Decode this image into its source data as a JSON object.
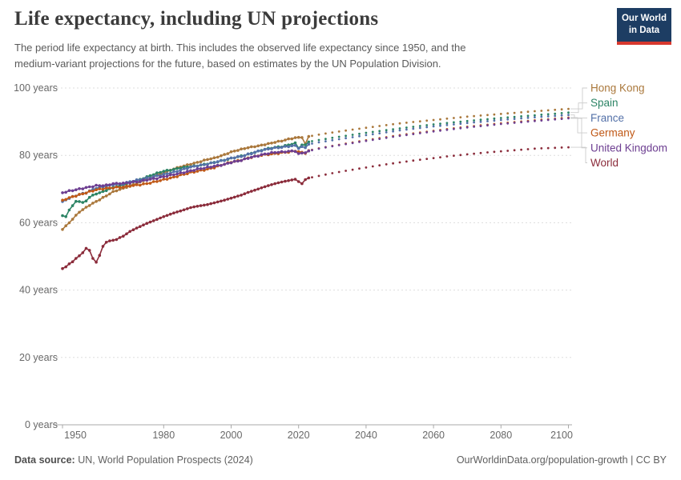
{
  "header": {
    "title": "Life expectancy, including UN projections",
    "subtitle": "The period life expectancy at birth. This includes the observed life expectancy since 1950, and the\nmedium-variant projections for the future, based on estimates by the UN Population Division.",
    "logo_line1": "Our World",
    "logo_line2": "in Data",
    "logo_bg": "#1d3d63",
    "logo_accent": "#d7382e"
  },
  "footer": {
    "source_label": "Data source:",
    "source_value": " UN, World Population Prospects (2024)",
    "credit": "OurWorldinData.org/population-growth | CC BY"
  },
  "chart_data": {
    "type": "line",
    "title": "Life expectancy, including UN projections",
    "xlabel": "",
    "ylabel": "years",
    "y_suffix": " years",
    "x_range": [
      1950,
      2100
    ],
    "y_range": [
      0,
      100
    ],
    "x_ticks": [
      1950,
      1980,
      2000,
      2020,
      2040,
      2060,
      2080,
      2100
    ],
    "y_ticks": [
      0,
      20,
      40,
      60,
      80,
      100
    ],
    "grid": "horizontal-dashed",
    "legend_position": "right",
    "observed_until": 2023,
    "projection_start": 2024,
    "colors": {
      "grid": "#dddddd",
      "axis": "#a9a9a9",
      "tick_text": "#686868",
      "leader": "#cccccc"
    },
    "series": [
      {
        "name": "Hong Kong",
        "color": "#AA783C",
        "wiggle": 0.1,
        "anchors": [
          [
            1950,
            58.0
          ],
          [
            1952,
            60.0
          ],
          [
            1955,
            63.2
          ],
          [
            1958,
            65.2
          ],
          [
            1960,
            66.3
          ],
          [
            1963,
            68.0
          ],
          [
            1965,
            69.2
          ],
          [
            1968,
            70.2
          ],
          [
            1970,
            71.0
          ],
          [
            1973,
            72.0
          ],
          [
            1975,
            73.0
          ],
          [
            1978,
            74.2
          ],
          [
            1980,
            74.8
          ],
          [
            1983,
            76.0
          ],
          [
            1985,
            76.6
          ],
          [
            1988,
            77.4
          ],
          [
            1990,
            77.9
          ],
          [
            1993,
            78.8
          ],
          [
            1995,
            79.2
          ],
          [
            1998,
            80.2
          ],
          [
            2000,
            81.0
          ],
          [
            2003,
            81.8
          ],
          [
            2005,
            82.3
          ],
          [
            2008,
            82.8
          ],
          [
            2010,
            83.2
          ],
          [
            2013,
            83.9
          ],
          [
            2015,
            84.3
          ],
          [
            2017,
            84.8
          ],
          [
            2019,
            85.2
          ],
          [
            2020,
            85.3
          ],
          [
            2021,
            85.4
          ],
          [
            2022,
            83.3
          ],
          [
            2023,
            85.6
          ],
          [
            2025,
            86.0
          ],
          [
            2030,
            86.8
          ],
          [
            2040,
            88.2
          ],
          [
            2050,
            89.5
          ],
          [
            2060,
            90.5
          ],
          [
            2070,
            91.5
          ],
          [
            2080,
            92.3
          ],
          [
            2090,
            93.1
          ],
          [
            2100,
            93.8
          ]
        ]
      },
      {
        "name": "Spain",
        "color": "#2C8465",
        "wiggle": 0.12,
        "anchors": [
          [
            1950,
            62.1
          ],
          [
            1951,
            61.7
          ],
          [
            1952,
            63.9
          ],
          [
            1953,
            65.0
          ],
          [
            1954,
            66.3
          ],
          [
            1955,
            66.4
          ],
          [
            1956,
            65.9
          ],
          [
            1957,
            66.5
          ],
          [
            1958,
            67.6
          ],
          [
            1960,
            68.6
          ],
          [
            1962,
            69.2
          ],
          [
            1965,
            70.5
          ],
          [
            1968,
            71.2
          ],
          [
            1970,
            72.0
          ],
          [
            1973,
            72.8
          ],
          [
            1975,
            73.6
          ],
          [
            1978,
            74.7
          ],
          [
            1980,
            75.3
          ],
          [
            1983,
            75.8
          ],
          [
            1985,
            76.3
          ],
          [
            1988,
            76.7
          ],
          [
            1990,
            76.9
          ],
          [
            1993,
            77.5
          ],
          [
            1995,
            77.9
          ],
          [
            1998,
            78.6
          ],
          [
            2000,
            79.1
          ],
          [
            2003,
            79.8
          ],
          [
            2005,
            80.3
          ],
          [
            2008,
            81.2
          ],
          [
            2010,
            81.8
          ],
          [
            2013,
            82.4
          ],
          [
            2015,
            82.6
          ],
          [
            2017,
            83.1
          ],
          [
            2019,
            83.6
          ],
          [
            2020,
            82.2
          ],
          [
            2021,
            83.1
          ],
          [
            2022,
            83.0
          ],
          [
            2023,
            84.0
          ],
          [
            2025,
            84.4
          ],
          [
            2030,
            85.2
          ],
          [
            2040,
            86.7
          ],
          [
            2050,
            88.0
          ],
          [
            2060,
            89.2
          ],
          [
            2070,
            90.2
          ],
          [
            2080,
            91.1
          ],
          [
            2090,
            91.9
          ],
          [
            2100,
            92.7
          ]
        ]
      },
      {
        "name": "France",
        "color": "#5471A8",
        "wiggle": 0.15,
        "anchors": [
          [
            1950,
            66.3
          ],
          [
            1952,
            67.3
          ],
          [
            1955,
            68.4
          ],
          [
            1957,
            68.9
          ],
          [
            1960,
            70.3
          ],
          [
            1963,
            70.8
          ],
          [
            1965,
            71.3
          ],
          [
            1968,
            71.6
          ],
          [
            1970,
            72.2
          ],
          [
            1973,
            72.8
          ],
          [
            1975,
            73.2
          ],
          [
            1978,
            73.9
          ],
          [
            1980,
            74.3
          ],
          [
            1983,
            75.0
          ],
          [
            1985,
            75.6
          ],
          [
            1988,
            76.5
          ],
          [
            1990,
            76.9
          ],
          [
            1993,
            77.4
          ],
          [
            1995,
            77.9
          ],
          [
            1998,
            78.6
          ],
          [
            2000,
            79.2
          ],
          [
            2003,
            79.7
          ],
          [
            2005,
            80.3
          ],
          [
            2008,
            81.2
          ],
          [
            2010,
            81.7
          ],
          [
            2013,
            82.2
          ],
          [
            2015,
            82.4
          ],
          [
            2017,
            82.7
          ],
          [
            2019,
            82.9
          ],
          [
            2020,
            82.2
          ],
          [
            2021,
            82.5
          ],
          [
            2022,
            82.3
          ],
          [
            2023,
            83.3
          ],
          [
            2025,
            83.7
          ],
          [
            2030,
            84.5
          ],
          [
            2040,
            86.0
          ],
          [
            2050,
            87.4
          ],
          [
            2060,
            88.6
          ],
          [
            2070,
            89.6
          ],
          [
            2080,
            90.5
          ],
          [
            2090,
            91.3
          ],
          [
            2100,
            92.0
          ]
        ]
      },
      {
        "name": "Germany",
        "color": "#C05917",
        "wiggle": 0.15,
        "anchors": [
          [
            1950,
            66.7
          ],
          [
            1952,
            67.4
          ],
          [
            1955,
            68.3
          ],
          [
            1957,
            68.9
          ],
          [
            1960,
            69.8
          ],
          [
            1963,
            70.2
          ],
          [
            1965,
            70.4
          ],
          [
            1968,
            70.6
          ],
          [
            1970,
            70.9
          ],
          [
            1973,
            71.3
          ],
          [
            1975,
            71.6
          ],
          [
            1978,
            72.3
          ],
          [
            1980,
            72.8
          ],
          [
            1983,
            73.5
          ],
          [
            1985,
            74.1
          ],
          [
            1988,
            74.9
          ],
          [
            1990,
            75.3
          ],
          [
            1993,
            75.9
          ],
          [
            1995,
            76.4
          ],
          [
            1998,
            77.4
          ],
          [
            2000,
            78.0
          ],
          [
            2003,
            78.6
          ],
          [
            2005,
            79.2
          ],
          [
            2008,
            79.9
          ],
          [
            2010,
            80.2
          ],
          [
            2013,
            80.5
          ],
          [
            2015,
            80.8
          ],
          [
            2017,
            81.0
          ],
          [
            2019,
            81.3
          ],
          [
            2020,
            81.1
          ],
          [
            2021,
            80.8
          ],
          [
            2022,
            80.7
          ],
          [
            2023,
            81.4
          ],
          [
            2025,
            81.9
          ],
          [
            2030,
            82.8
          ],
          [
            2040,
            84.5
          ],
          [
            2050,
            86.0
          ],
          [
            2060,
            87.3
          ],
          [
            2070,
            88.5
          ],
          [
            2080,
            89.5
          ],
          [
            2090,
            90.4
          ],
          [
            2100,
            91.2
          ]
        ]
      },
      {
        "name": "United Kingdom",
        "color": "#6D3E91",
        "wiggle": 0.15,
        "anchors": [
          [
            1950,
            68.9
          ],
          [
            1952,
            69.4
          ],
          [
            1955,
            70.0
          ],
          [
            1957,
            70.4
          ],
          [
            1960,
            71.0
          ],
          [
            1963,
            71.1
          ],
          [
            1965,
            71.6
          ],
          [
            1968,
            71.7
          ],
          [
            1970,
            71.9
          ],
          [
            1973,
            72.3
          ],
          [
            1975,
            72.7
          ],
          [
            1978,
            73.2
          ],
          [
            1980,
            73.7
          ],
          [
            1983,
            74.3
          ],
          [
            1985,
            74.7
          ],
          [
            1988,
            75.4
          ],
          [
            1990,
            75.9
          ],
          [
            1993,
            76.4
          ],
          [
            1995,
            76.8
          ],
          [
            1998,
            77.3
          ],
          [
            2000,
            77.9
          ],
          [
            2003,
            78.5
          ],
          [
            2005,
            79.2
          ],
          [
            2008,
            79.9
          ],
          [
            2010,
            80.4
          ],
          [
            2013,
            80.9
          ],
          [
            2015,
            81.0
          ],
          [
            2017,
            81.2
          ],
          [
            2019,
            81.3
          ],
          [
            2020,
            80.4
          ],
          [
            2021,
            80.7
          ],
          [
            2022,
            80.9
          ],
          [
            2023,
            81.3
          ],
          [
            2025,
            81.8
          ],
          [
            2030,
            82.7
          ],
          [
            2040,
            84.3
          ],
          [
            2050,
            85.8
          ],
          [
            2060,
            87.1
          ],
          [
            2070,
            88.3
          ],
          [
            2080,
            89.3
          ],
          [
            2090,
            90.2
          ],
          [
            2100,
            91.0
          ]
        ]
      },
      {
        "name": "World",
        "color": "#8B2C3B",
        "wiggle": 0,
        "anchors": [
          [
            1950,
            46.4
          ],
          [
            1951,
            46.9
          ],
          [
            1952,
            47.8
          ],
          [
            1953,
            48.4
          ],
          [
            1954,
            49.4
          ],
          [
            1955,
            50.2
          ],
          [
            1956,
            51.1
          ],
          [
            1957,
            52.4
          ],
          [
            1958,
            51.8
          ],
          [
            1959,
            49.4
          ],
          [
            1960,
            48.3
          ],
          [
            1961,
            50.3
          ],
          [
            1962,
            53.0
          ],
          [
            1963,
            54.2
          ],
          [
            1964,
            54.6
          ],
          [
            1965,
            54.8
          ],
          [
            1966,
            55.0
          ],
          [
            1967,
            55.6
          ],
          [
            1968,
            56.0
          ],
          [
            1970,
            57.4
          ],
          [
            1972,
            58.4
          ],
          [
            1975,
            59.8
          ],
          [
            1978,
            61.0
          ],
          [
            1980,
            61.8
          ],
          [
            1983,
            62.9
          ],
          [
            1985,
            63.5
          ],
          [
            1988,
            64.5
          ],
          [
            1990,
            64.9
          ],
          [
            1993,
            65.4
          ],
          [
            1995,
            65.9
          ],
          [
            1998,
            66.7
          ],
          [
            2000,
            67.3
          ],
          [
            2003,
            68.2
          ],
          [
            2005,
            69.0
          ],
          [
            2008,
            70.0
          ],
          [
            2010,
            70.7
          ],
          [
            2013,
            71.6
          ],
          [
            2015,
            72.1
          ],
          [
            2017,
            72.5
          ],
          [
            2019,
            72.9
          ],
          [
            2020,
            72.2
          ],
          [
            2021,
            71.6
          ],
          [
            2022,
            72.8
          ],
          [
            2023,
            73.3
          ],
          [
            2025,
            73.7
          ],
          [
            2030,
            74.7
          ],
          [
            2035,
            75.6
          ],
          [
            2040,
            76.4
          ],
          [
            2045,
            77.2
          ],
          [
            2050,
            77.9
          ],
          [
            2055,
            78.6
          ],
          [
            2060,
            79.2
          ],
          [
            2065,
            79.8
          ],
          [
            2070,
            80.3
          ],
          [
            2075,
            80.8
          ],
          [
            2080,
            81.2
          ],
          [
            2085,
            81.6
          ],
          [
            2090,
            82.0
          ],
          [
            2095,
            82.2
          ],
          [
            2100,
            82.4
          ]
        ]
      }
    ]
  }
}
